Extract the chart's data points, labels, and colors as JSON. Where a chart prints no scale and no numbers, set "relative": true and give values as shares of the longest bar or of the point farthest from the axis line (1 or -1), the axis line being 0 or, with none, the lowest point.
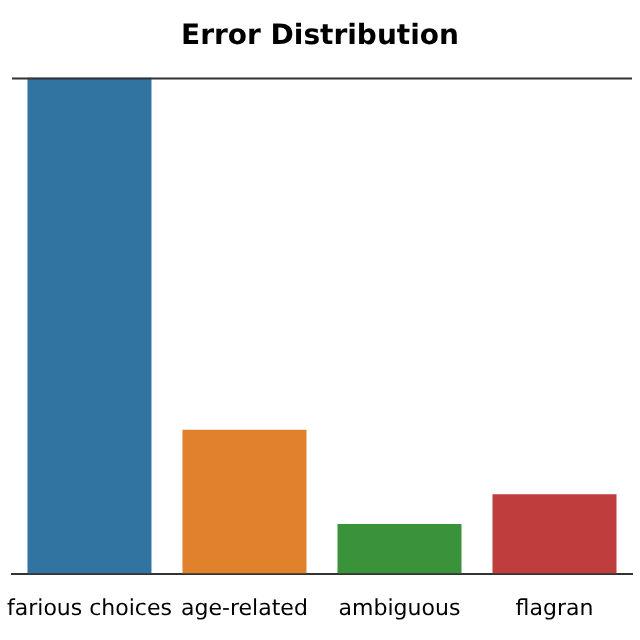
{
  "chart_data": {
    "type": "bar",
    "title": "Error Distribution",
    "relative": true,
    "categories": [
      "farious choices",
      "age-related",
      "ambiguous",
      "flagran"
    ],
    "values": [
      1,
      0.29,
      0.1,
      0.16
    ],
    "colors": [
      "#3274a1",
      "#e1812c",
      "#3a923a",
      "#c03d3e"
    ],
    "grid": false,
    "legend": false
  }
}
